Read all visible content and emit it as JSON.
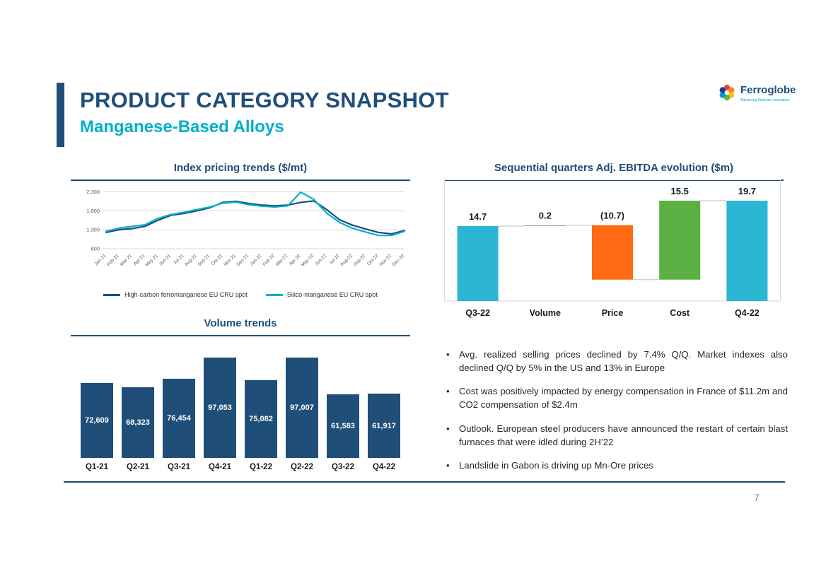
{
  "slide": {
    "title": "PRODUCT CATEGORY SNAPSHOT",
    "subtitle": "Manganese-Based Alloys",
    "page_number": "7"
  },
  "logo": {
    "name": "Ferroglobe",
    "tagline": "Advancing Materials Innovation"
  },
  "colors": {
    "navy": "#1f4e79",
    "cyan": "#00b0ca",
    "waterfall_teal": "#2bb7d3",
    "orange": "#ff6a13",
    "green": "#5ab043",
    "gridline": "#d9d9d9",
    "connector": "#bfbfbf"
  },
  "bullets": [
    "Avg. realized selling prices declined by 7.4% Q/Q. Market indexes also declined Q/Q by 5% in the US and 13% in Europe",
    "Cost was positively impacted by energy compensation in France of $11.2m and CO2 compensation of $2.4m",
    "Outlook. European steel producers have announced the restart of certain blast furnaces that were idled during 2H’22",
    "Landslide in Gabon is driving up Mn-Ore prices"
  ],
  "chart_data": [
    {
      "type": "line",
      "title": "Index pricing trends ($/mt)",
      "x": [
        "Jan-21",
        "Feb-21",
        "Mar-21",
        "Apr-21",
        "May-21",
        "Jun-21",
        "Jul-21",
        "Aug-21",
        "Sep-21",
        "Oct-21",
        "Nov-21",
        "Dec-21",
        "Jan-22",
        "Feb-22",
        "Mar-22",
        "Apr-22",
        "May-22",
        "Jun-22",
        "Jul-22",
        "Aug-22",
        "Sep-22",
        "Oct-22",
        "Nov-22",
        "Dec-22"
      ],
      "series": [
        {
          "name": "High-carbon ferromanganese EU CRU spot",
          "color": "#1f4e79",
          "values": [
            1230,
            1300,
            1330,
            1390,
            1550,
            1680,
            1730,
            1800,
            1880,
            2020,
            2050,
            1990,
            1950,
            1930,
            1950,
            2020,
            2060,
            1830,
            1560,
            1420,
            1320,
            1230,
            1190,
            1280
          ]
        },
        {
          "name": "Silico-manganese EU CRU spot",
          "color": "#00b0ca",
          "values": [
            1260,
            1340,
            1390,
            1430,
            1600,
            1700,
            1760,
            1830,
            1900,
            2000,
            2030,
            1960,
            1920,
            1900,
            1930,
            2290,
            2100,
            1740,
            1490,
            1340,
            1240,
            1150,
            1150,
            1260
          ]
        }
      ],
      "ylim": [
        800,
        2400
      ],
      "yticks": [
        800,
        1300,
        1800,
        2300
      ],
      "grid": true,
      "legend_position": "bottom"
    },
    {
      "type": "bar",
      "title": "Volume trends",
      "categories": [
        "Q1-21",
        "Q2-21",
        "Q3-21",
        "Q4-21",
        "Q1-22",
        "Q2-22",
        "Q3-22",
        "Q4-22"
      ],
      "values": [
        72609,
        68323,
        76454,
        97053,
        75082,
        97007,
        61583,
        61917
      ],
      "labels": [
        "72,609",
        "68,323",
        "76,454",
        "97,053",
        "75,082",
        "97,007",
        "61,583",
        "61,917"
      ],
      "bar_color": "#1f4e79"
    },
    {
      "type": "waterfall",
      "title": "Sequential quarters Adj. EBITDA evolution ($m)",
      "categories": [
        "Q3-22",
        "Volume",
        "Price",
        "Cost",
        "Q4-22"
      ],
      "values": [
        14.7,
        0.2,
        -10.7,
        15.5,
        19.7
      ],
      "labels": [
        "14.7",
        "0.2",
        "(10.7)",
        "15.5",
        "19.7"
      ],
      "bar_types": [
        "total",
        "delta",
        "delta",
        "delta",
        "total"
      ],
      "bar_colors": [
        "#2bb7d3",
        "#a6a6a6",
        "#ff6a13",
        "#5ab043",
        "#2bb7d3"
      ]
    }
  ]
}
